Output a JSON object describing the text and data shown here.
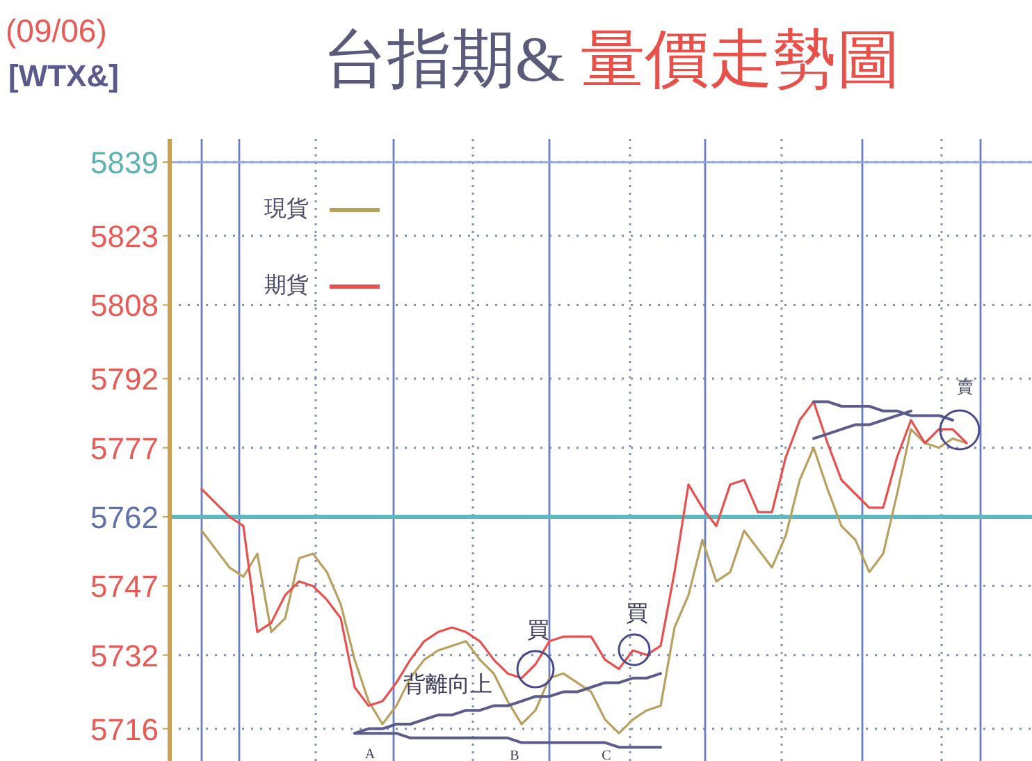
{
  "chart_data": {
    "type": "line",
    "title": "台指期& 量價走勢圖",
    "categories": [
      null,
      null,
      null,
      null,
      null,
      null,
      null,
      null,
      null,
      null,
      null,
      null,
      null,
      null,
      null,
      null,
      null,
      null,
      null,
      null,
      null,
      null,
      null,
      null,
      null,
      null,
      null,
      null,
      null,
      null,
      null,
      null,
      null,
      null,
      null,
      null,
      null,
      null,
      null,
      null,
      null,
      null,
      null,
      null,
      null,
      null,
      null,
      null,
      null,
      null,
      null,
      null,
      null,
      null,
      null,
      null
    ],
    "series": [
      {
        "name": "現貨",
        "color": "#b8a060",
        "values": [
          5759,
          5755,
          5751,
          5749,
          5754,
          5737,
          5740,
          5753,
          5754,
          5750,
          5743,
          5731,
          5722,
          5717,
          5721,
          5727,
          5731,
          5733,
          5734,
          5735,
          5731,
          5728,
          5722,
          5717,
          5720,
          5727,
          5728,
          5726,
          5724,
          5718,
          5715,
          5718,
          5720,
          5721,
          5738,
          5745,
          5757,
          5748,
          5750,
          5759,
          5755,
          5751,
          5758,
          5770,
          5777,
          5768,
          5760,
          5757,
          5750,
          5754,
          5767,
          5781,
          5778,
          5777,
          5779,
          5778
        ]
      },
      {
        "name": "期貨",
        "color": "#e85050",
        "values": [
          5768,
          5765,
          5762,
          5760,
          5737,
          5739,
          5745,
          5748,
          5747,
          5744,
          5740,
          5725,
          5721,
          5722,
          5726,
          5731,
          5735,
          5737,
          5738,
          5737,
          5735,
          5731,
          5728,
          5727,
          5730,
          5735,
          5736,
          5736,
          5736,
          5731,
          5729,
          5733,
          5732,
          5734,
          5750,
          5769,
          5764,
          5760,
          5769,
          5770,
          5763,
          5763,
          5775,
          5783,
          5787,
          5778,
          5770,
          5767,
          5764,
          5764,
          5775,
          5783,
          5778,
          5781,
          5781,
          5778
        ]
      },
      {
        "type": "line",
        "color": "#5b5b8c",
        "values": [
          null,
          null,
          null,
          null,
          null,
          null,
          null,
          null,
          null,
          null,
          null,
          5715,
          5715,
          5715,
          5715,
          5714,
          5714,
          5714,
          5714,
          5714,
          5714,
          5714,
          5714,
          5713,
          5713,
          5713,
          5713,
          5713,
          5713,
          5713,
          5712,
          5712,
          5712,
          5712,
          null,
          null,
          null,
          null,
          null,
          null,
          null,
          null,
          null,
          null,
          null,
          null,
          null,
          null,
          null,
          null,
          null,
          null,
          null,
          null,
          null,
          null
        ]
      },
      {
        "type": "line",
        "color": "#5b5b8c",
        "values": [
          null,
          null,
          null,
          null,
          null,
          null,
          null,
          null,
          null,
          null,
          null,
          5715,
          5716,
          5716,
          5717,
          5717,
          5718,
          5719,
          5719,
          5720,
          5720,
          5721,
          5721,
          5722,
          5723,
          5723,
          5724,
          5724,
          5725,
          5726,
          5726,
          5727,
          5727,
          5728,
          null,
          null,
          null,
          null,
          null,
          null,
          null,
          null,
          null,
          null,
          null,
          null,
          null,
          null,
          null,
          null,
          null,
          null,
          null,
          null,
          null,
          null
        ]
      },
      {
        "type": "line",
        "color": "#5b5b8c",
        "values": [
          null,
          null,
          null,
          null,
          null,
          null,
          null,
          null,
          null,
          null,
          null,
          null,
          null,
          null,
          null,
          null,
          null,
          null,
          null,
          null,
          null,
          null,
          null,
          null,
          null,
          null,
          null,
          null,
          null,
          null,
          null,
          null,
          null,
          null,
          null,
          null,
          null,
          null,
          null,
          null,
          null,
          null,
          null,
          null,
          5787,
          5787,
          5786,
          5786,
          5786,
          5785,
          5785,
          5784,
          5784,
          5784,
          5783,
          null
        ]
      },
      {
        "type": "line",
        "color": "#5b5b8c",
        "values": [
          null,
          null,
          null,
          null,
          null,
          null,
          null,
          null,
          null,
          null,
          null,
          null,
          null,
          null,
          null,
          null,
          null,
          null,
          null,
          null,
          null,
          null,
          null,
          null,
          null,
          null,
          null,
          null,
          null,
          null,
          null,
          null,
          null,
          null,
          null,
          null,
          null,
          null,
          null,
          null,
          null,
          null,
          null,
          null,
          5779,
          5780,
          5781,
          5782,
          5782,
          5783,
          5784,
          5785,
          null,
          null,
          null,
          null
        ]
      }
    ],
    "ylim": [
      5709,
      5844
    ],
    "yticks": [
      5716,
      5732,
      5747,
      5762,
      5777,
      5792,
      5808,
      5823,
      5839
    ],
    "grid": true,
    "legend": "top left",
    "line_style": "solid",
    "marker": "none",
    "ref_lines": [
      {
        "axis": "y",
        "value": 5762,
        "label": null,
        "color": "#5fb8c0"
      },
      {
        "axis": "y",
        "value": 5839,
        "label": null,
        "color": "#8fa3d9"
      }
    ],
    "annotations": [
      "(09/06)",
      "[WTX&]",
      "背離向上",
      "買",
      "買",
      "賣",
      "A",
      "B",
      "C"
    ]
  }
}
